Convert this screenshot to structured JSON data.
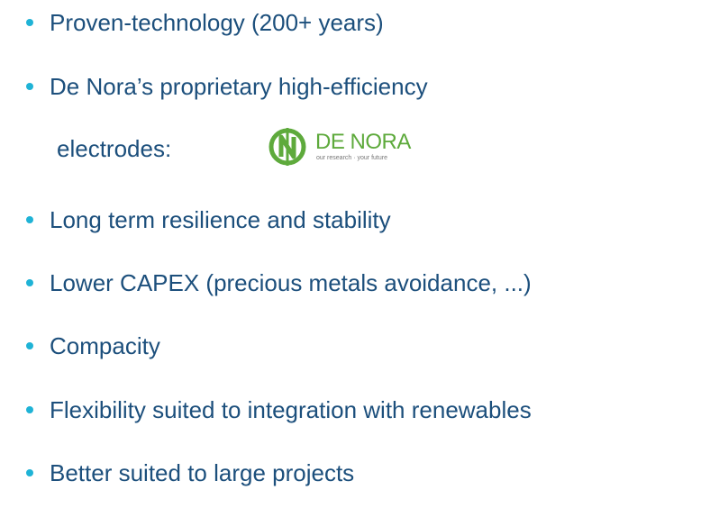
{
  "bullets": [
    {
      "text": "Proven-technology (200+ years)"
    },
    {
      "text": "De Nora’s proprietary high-efficiency",
      "continuation": "electrodes:"
    },
    {
      "text": "Long term resilience and stability"
    },
    {
      "text": "Lower CAPEX (precious metals avoidance, ...)"
    },
    {
      "text": "Compacity"
    },
    {
      "text": "Flexibility suited to integration with renewables"
    },
    {
      "text": "Better suited to large projects"
    }
  ],
  "logo": {
    "name": "DE NORA",
    "tagline": "our research · your future"
  }
}
